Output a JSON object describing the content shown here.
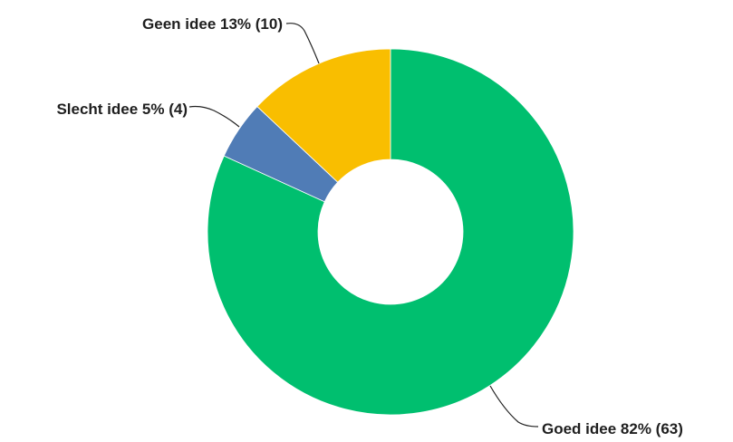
{
  "chart_data": {
    "type": "pie",
    "style": "donut",
    "title": "",
    "slices": [
      {
        "label": "Goed idee 82% (63)",
        "category": "Goed idee",
        "percent": 82,
        "count": 63,
        "color": "#00bf6f"
      },
      {
        "label": "Slecht idee 5% (4)",
        "category": "Slecht idee",
        "percent": 5,
        "count": 4,
        "color": "#507cb6"
      },
      {
        "label": "Geen idee 13% (10)",
        "category": "Geen idee",
        "percent": 13,
        "count": 10,
        "color": "#f9be00"
      }
    ]
  }
}
